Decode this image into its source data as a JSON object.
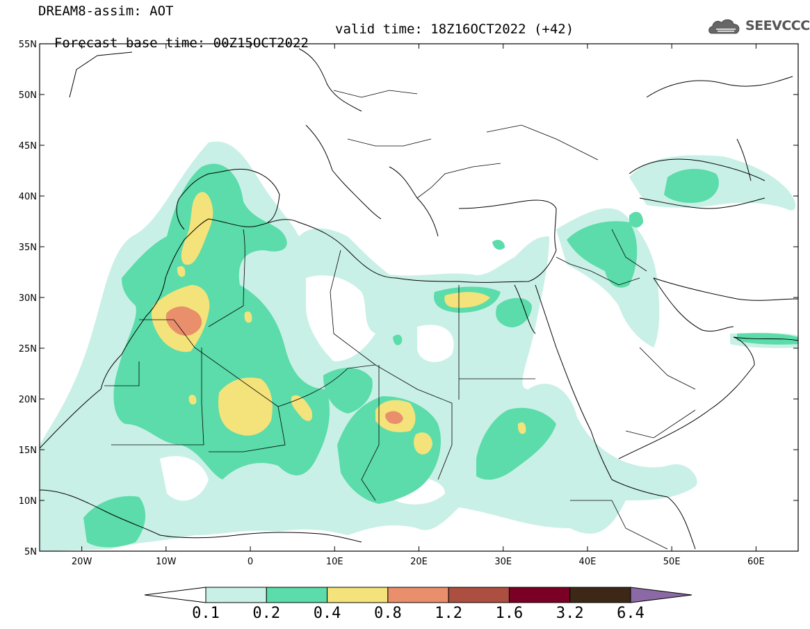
{
  "header": {
    "line1": "DREAM8-assim: AOT",
    "line2_left": "Forecast base time: 00Z15OCT2022",
    "line2_right": "valid time: 18Z16OCT2022 (+42)",
    "logo_text": "SEEVCCC",
    "logo_icon": "cloud-icon"
  },
  "map": {
    "lat_range": [
      5,
      55
    ],
    "lon_range": [
      -25,
      65
    ],
    "lat_ticks": [
      "55N",
      "50N",
      "45N",
      "40N",
      "35N",
      "30N",
      "25N",
      "20N",
      "15N",
      "10N",
      "5N"
    ],
    "lon_ticks": [
      "20W",
      "10W",
      "0",
      "10E",
      "20E",
      "30E",
      "40E",
      "50E",
      "60E"
    ],
    "variable": "AOT"
  },
  "colorbar": {
    "labels": [
      "0.1",
      "0.2",
      "0.4",
      "0.8",
      "1.2",
      "1.6",
      "3.2",
      "6.4"
    ],
    "colors": [
      "#ffffff",
      "#c9f0e6",
      "#5bdcaa",
      "#f4e37a",
      "#e98f6b",
      "#ad4f40",
      "#7a0026",
      "#3d2717",
      "#8b69a4"
    ]
  },
  "colors": {
    "level1": "#c9f0e6",
    "level2": "#5bdcaa",
    "level3": "#f4e37a",
    "level4": "#e98f6b"
  }
}
